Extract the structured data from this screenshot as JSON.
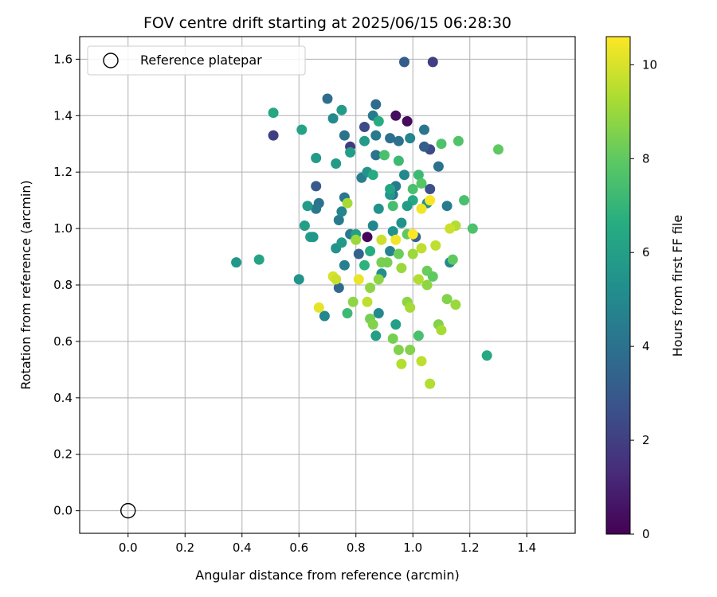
{
  "chart_data": {
    "type": "scatter",
    "title": "FOV centre drift starting at 2025/06/15 06:28:30",
    "xlabel": "Angular distance from reference (arcmin)",
    "ylabel": "Rotation from reference (arcmin)",
    "xlim": [
      -0.17,
      1.57
    ],
    "ylim": [
      -0.08,
      1.68
    ],
    "xticks": [
      0.0,
      0.2,
      0.4,
      0.6,
      0.8,
      1.0,
      1.2,
      1.4
    ],
    "xtick_labels": [
      "0.0",
      "0.2",
      "0.4",
      "0.6",
      "0.8",
      "1.0",
      "1.2",
      "1.4"
    ],
    "yticks": [
      0.0,
      0.2,
      0.4,
      0.6,
      0.8,
      1.0,
      1.2,
      1.4,
      1.6
    ],
    "ytick_labels": [
      "0.0",
      "0.2",
      "0.4",
      "0.6",
      "0.8",
      "1.0",
      "1.2",
      "1.4",
      "1.6"
    ],
    "grid": true,
    "legend": {
      "placement": "top-left",
      "entries": [
        "Reference platepar"
      ]
    },
    "reference_point": {
      "x": 0.0,
      "y": 0.0,
      "label": "Reference platepar"
    },
    "colorbar": {
      "label": "Hours from first FF file",
      "colormap": "viridis",
      "range": [
        0,
        10.6
      ],
      "ticks": [
        0,
        2,
        4,
        6,
        8,
        10
      ],
      "tick_labels": [
        "0",
        "2",
        "4",
        "6",
        "8",
        "10"
      ]
    },
    "series": [
      {
        "points": [
          [
            0.94,
            1.4,
            0.4
          ],
          [
            0.98,
            1.38,
            0.3
          ],
          [
            0.84,
            0.97,
            0.2
          ],
          [
            1.07,
            1.59,
            2.0
          ],
          [
            0.97,
            1.59,
            3.1
          ],
          [
            0.51,
            1.33,
            2.0
          ],
          [
            0.78,
            1.29,
            1.8
          ],
          [
            0.83,
            1.36,
            2.4
          ],
          [
            1.06,
            1.28,
            2.4
          ],
          [
            1.06,
            1.14,
            2.6
          ],
          [
            0.66,
            1.15,
            3.0
          ],
          [
            1.04,
            1.29,
            3.2
          ],
          [
            1.01,
            0.97,
            3.4
          ],
          [
            0.81,
            0.91,
            3.4
          ],
          [
            0.74,
            0.79,
            3.7
          ],
          [
            0.7,
            1.46,
            3.8
          ],
          [
            0.87,
            1.44,
            3.8
          ],
          [
            0.76,
            1.33,
            4.0
          ],
          [
            0.95,
            1.31,
            4.0
          ],
          [
            1.04,
            1.35,
            4.2
          ],
          [
            0.92,
            1.32,
            3.9
          ],
          [
            1.09,
            1.22,
            4.0
          ],
          [
            0.87,
            1.26,
            4.1
          ],
          [
            0.99,
            1.32,
            4.8
          ],
          [
            0.93,
            1.12,
            4.1
          ],
          [
            0.94,
            1.15,
            4.3
          ],
          [
            1.12,
            1.08,
            4.4
          ],
          [
            0.76,
            1.11,
            4.2
          ],
          [
            0.67,
            1.09,
            4.0
          ],
          [
            0.66,
            1.07,
            4.3
          ],
          [
            0.74,
            1.03,
            4.4
          ],
          [
            0.78,
            0.98,
            4.4
          ],
          [
            0.82,
            1.18,
            4.5
          ],
          [
            0.75,
            1.06,
            4.8
          ],
          [
            0.86,
            1.01,
            4.9
          ],
          [
            0.92,
            0.92,
            4.7
          ],
          [
            0.76,
            0.87,
            4.6
          ],
          [
            0.69,
            0.69,
            4.9
          ],
          [
            0.87,
            1.33,
            4.3
          ],
          [
            0.84,
            1.2,
            5.2
          ],
          [
            0.86,
            1.4,
            4.4
          ],
          [
            0.96,
            1.02,
            5.4
          ],
          [
            1.13,
            0.88,
            5.0
          ],
          [
            0.72,
            1.39,
            5.0
          ],
          [
            0.75,
            1.42,
            5.8
          ],
          [
            0.66,
            1.25,
            5.8
          ],
          [
            0.73,
            1.23,
            5.8
          ],
          [
            0.61,
            1.35,
            6.2
          ],
          [
            0.51,
            1.41,
            6.3
          ],
          [
            0.88,
            1.07,
            5.4
          ],
          [
            0.84,
            1.2,
            5.5
          ],
          [
            0.78,
            1.27,
            6.0
          ],
          [
            0.83,
            1.31,
            5.8
          ],
          [
            0.97,
            1.19,
            5.0
          ],
          [
            1.05,
            1.09,
            5.4
          ],
          [
            0.92,
            1.12,
            5.6
          ],
          [
            0.93,
            0.99,
            5.4
          ],
          [
            0.89,
            0.84,
            5.2
          ],
          [
            0.88,
            0.7,
            5.0
          ],
          [
            0.87,
            0.62,
            6.0
          ],
          [
            0.94,
            0.66,
            6.0
          ],
          [
            0.38,
            0.88,
            5.6
          ],
          [
            0.46,
            0.89,
            6.2
          ],
          [
            0.6,
            0.82,
            5.5
          ],
          [
            0.62,
            1.01,
            6.0
          ],
          [
            0.64,
            0.97,
            6.0
          ],
          [
            0.65,
            0.97,
            5.6
          ],
          [
            0.63,
            1.08,
            5.8
          ],
          [
            0.73,
            0.93,
            5.5
          ],
          [
            0.75,
            0.95,
            5.7
          ],
          [
            0.8,
            0.98,
            6.0
          ],
          [
            0.92,
            1.14,
            6.2
          ],
          [
            0.86,
            1.19,
            6.5
          ],
          [
            0.88,
            1.38,
            6.6
          ],
          [
            1.0,
            1.1,
            6.4
          ],
          [
            0.98,
            1.08,
            5.8
          ],
          [
            1.26,
            0.55,
            6.4
          ],
          [
            0.83,
            0.87,
            6.8
          ],
          [
            0.85,
            0.92,
            6.6
          ],
          [
            0.9,
            1.26,
            7.5
          ],
          [
            0.95,
            1.24,
            7.2
          ],
          [
            1.0,
            1.14,
            7.5
          ],
          [
            1.02,
            1.19,
            7.2
          ],
          [
            1.1,
            1.3,
            7.6
          ],
          [
            1.16,
            1.31,
            7.7
          ],
          [
            1.3,
            1.28,
            8.0
          ],
          [
            1.18,
            1.1,
            7.5
          ],
          [
            1.21,
            1.0,
            7.6
          ],
          [
            0.77,
            0.7,
            7.2
          ],
          [
            1.03,
            1.16,
            7.8
          ],
          [
            0.93,
            1.08,
            7.4
          ],
          [
            1.02,
            0.62,
            7.5
          ],
          [
            0.98,
            0.98,
            8.0
          ],
          [
            1.05,
            0.85,
            8.2
          ],
          [
            1.07,
            0.83,
            8.0
          ],
          [
            1.14,
            0.89,
            8.0
          ],
          [
            0.95,
            0.91,
            8.2
          ],
          [
            0.89,
            0.88,
            8.4
          ],
          [
            0.91,
            0.88,
            8.4
          ],
          [
            0.85,
            0.68,
            8.4
          ],
          [
            0.86,
            0.66,
            8.6
          ],
          [
            0.93,
            0.61,
            8.4
          ],
          [
            0.95,
            0.57,
            8.6
          ],
          [
            0.99,
            0.57,
            8.6
          ],
          [
            1.05,
            0.8,
            8.8
          ],
          [
            1.09,
            0.66,
            8.6
          ],
          [
            1.12,
            0.75,
            8.6
          ],
          [
            1.15,
            0.73,
            9.0
          ],
          [
            1.1,
            0.64,
            9.2
          ],
          [
            0.79,
            0.74,
            8.8
          ],
          [
            0.85,
            0.79,
            8.8
          ],
          [
            0.88,
            0.82,
            8.8
          ],
          [
            0.96,
            0.86,
            9.0
          ],
          [
            0.98,
            0.74,
            8.8
          ],
          [
            0.99,
            0.72,
            9.2
          ],
          [
            1.0,
            0.91,
            9.0
          ],
          [
            1.02,
            0.82,
            9.4
          ],
          [
            1.03,
            0.93,
            9.6
          ],
          [
            1.06,
            0.45,
            9.4
          ],
          [
            1.03,
            0.53,
            9.6
          ],
          [
            0.96,
            0.52,
            9.4
          ],
          [
            1.08,
            0.94,
            9.6
          ],
          [
            1.15,
            1.01,
            9.4
          ],
          [
            1.13,
            1.0,
            9.8
          ],
          [
            0.84,
            0.74,
            9.6
          ],
          [
            0.81,
            0.82,
            10.3
          ],
          [
            0.72,
            0.83,
            10.0
          ],
          [
            0.73,
            0.82,
            9.8
          ],
          [
            0.67,
            0.72,
            10.2
          ],
          [
            0.89,
            0.96,
            9.8
          ],
          [
            0.94,
            0.96,
            10.4
          ],
          [
            1.0,
            0.98,
            10.6
          ],
          [
            1.03,
            1.07,
            10.4
          ],
          [
            1.06,
            1.1,
            10.5
          ],
          [
            0.77,
            1.09,
            9.2
          ],
          [
            0.8,
            0.96,
            9.0
          ]
        ]
      }
    ]
  }
}
